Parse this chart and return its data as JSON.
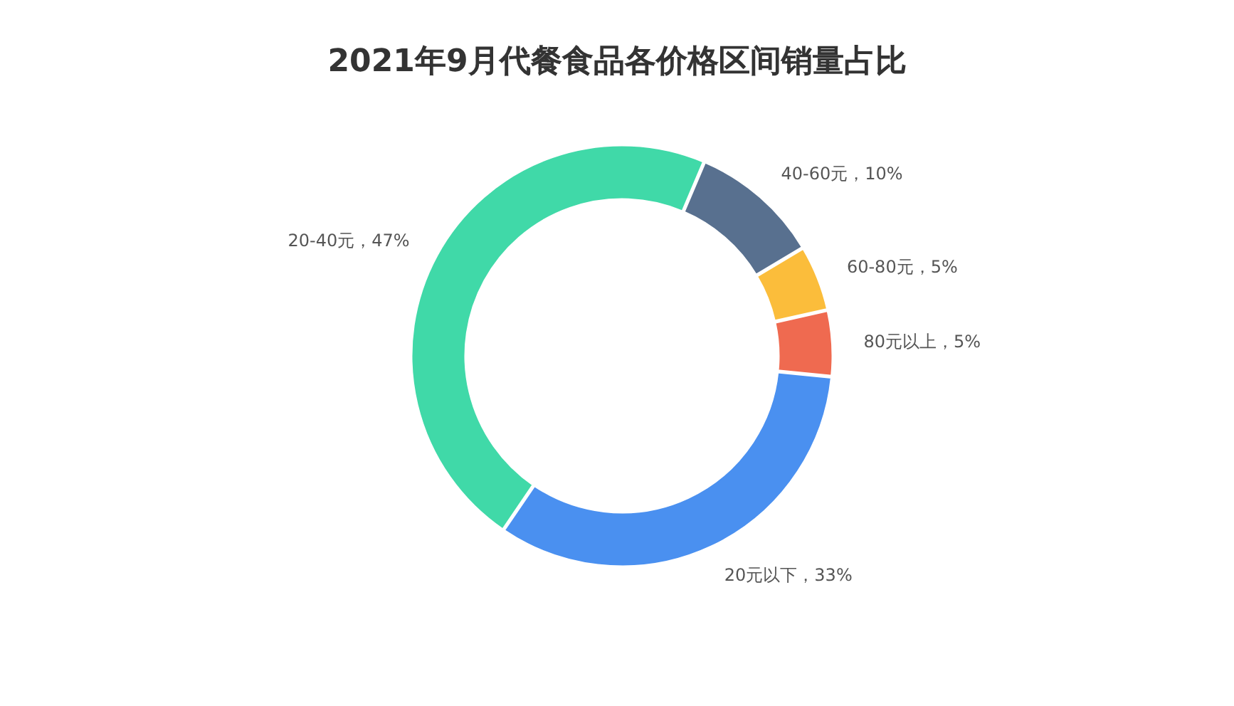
{
  "chart_data": {
    "type": "donut",
    "title": "2021年9月代餐食品各价格区间销量占比",
    "categories": [
      "40-60元",
      "60-80元",
      "80元以上",
      "20元以下",
      "20-40元"
    ],
    "values": [
      10,
      5,
      5,
      33,
      47
    ],
    "value_labels": [
      "10%",
      "5%",
      "5%",
      "33%",
      "47%"
    ],
    "colors": [
      "#58708f",
      "#fbbd3b",
      "#ef6a50",
      "#4a90f0",
      "#40d9a8"
    ],
    "legend": false
  }
}
